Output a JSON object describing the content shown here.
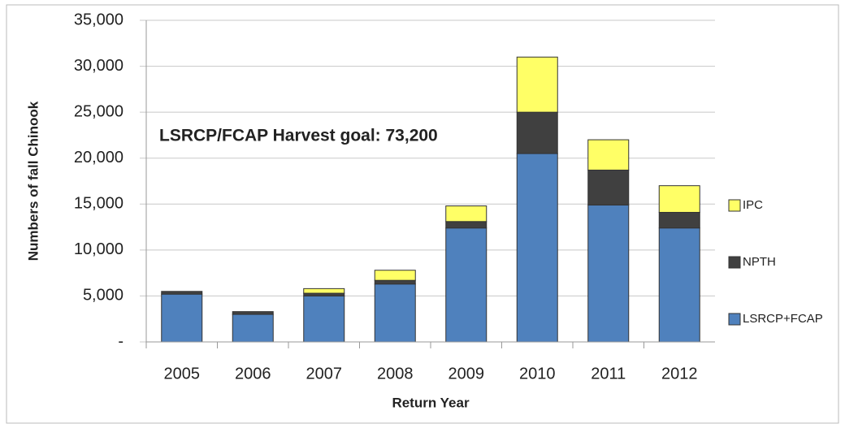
{
  "chart_data": {
    "type": "stacked-bar",
    "annotation": "LSRCP/FCAP Harvest goal:  73,200",
    "x_label": "Return Year",
    "y_label": "Numbers of fall Chinook",
    "categories": [
      "2005",
      "2006",
      "2007",
      "2008",
      "2009",
      "2010",
      "2011",
      "2012"
    ],
    "series": [
      {
        "name": "LSRCP+FCAP",
        "color": "#4f81bd",
        "values": [
          5200,
          3000,
          5000,
          6300,
          12400,
          20500,
          14900,
          12400
        ]
      },
      {
        "name": "NPTH",
        "color": "#404040",
        "values": [
          300,
          300,
          300,
          400,
          700,
          4500,
          3800,
          1700
        ]
      },
      {
        "name": "IPC",
        "color": "#ffff66",
        "values": [
          0,
          0,
          500,
          1100,
          1700,
          6000,
          3300,
          2900
        ]
      }
    ],
    "ylim": [
      0,
      35000
    ],
    "yticks": [
      {
        "value": 0,
        "label": "-"
      },
      {
        "value": 5000,
        "label": "5,000"
      },
      {
        "value": 10000,
        "label": "10,000"
      },
      {
        "value": 15000,
        "label": "15,000"
      },
      {
        "value": 20000,
        "label": "20,000"
      },
      {
        "value": 25000,
        "label": "25,000"
      },
      {
        "value": 30000,
        "label": "30,000"
      },
      {
        "value": 35000,
        "label": "35,000"
      }
    ],
    "grid": true
  }
}
